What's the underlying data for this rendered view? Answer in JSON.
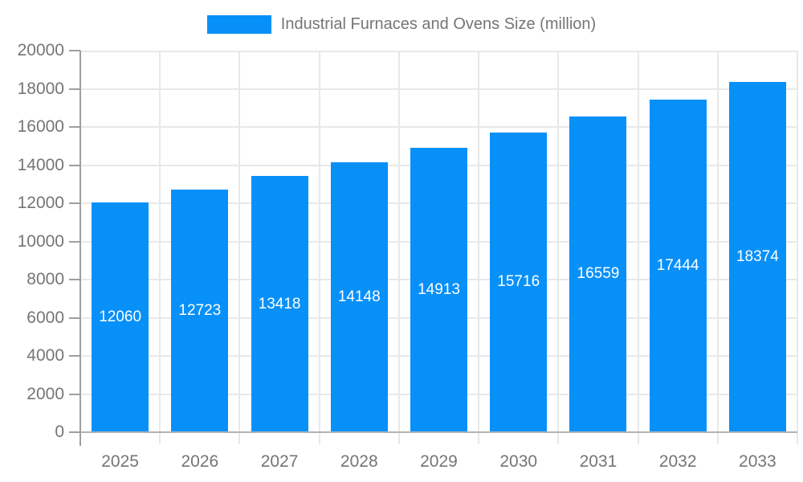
{
  "chart_data": {
    "type": "bar",
    "title": "Industrial Furnaces and Ovens Size (million)",
    "categories": [
      "2025",
      "2026",
      "2027",
      "2028",
      "2029",
      "2030",
      "2031",
      "2032",
      "2033"
    ],
    "series": [
      {
        "name": "Industrial Furnaces and Ovens Size (million)",
        "values": [
          12060,
          12723,
          13418,
          14148,
          14913,
          15716,
          16559,
          17444,
          18374
        ]
      }
    ],
    "xlabel": "",
    "ylabel": "",
    "ylim": [
      0,
      20000
    ],
    "y_ticks": [
      0,
      2000,
      4000,
      6000,
      8000,
      10000,
      12000,
      14000,
      16000,
      18000,
      20000
    ],
    "grid": true,
    "legend_position": "top",
    "value_labels_inside_bars": true,
    "colors": {
      "bar": "#0890f9",
      "bar_label": "#ffffff",
      "axis_text": "#757575",
      "gridline": "#e8e8e8",
      "axis_line": "#9e9e9e",
      "baseline": "#b3b3b3"
    }
  }
}
